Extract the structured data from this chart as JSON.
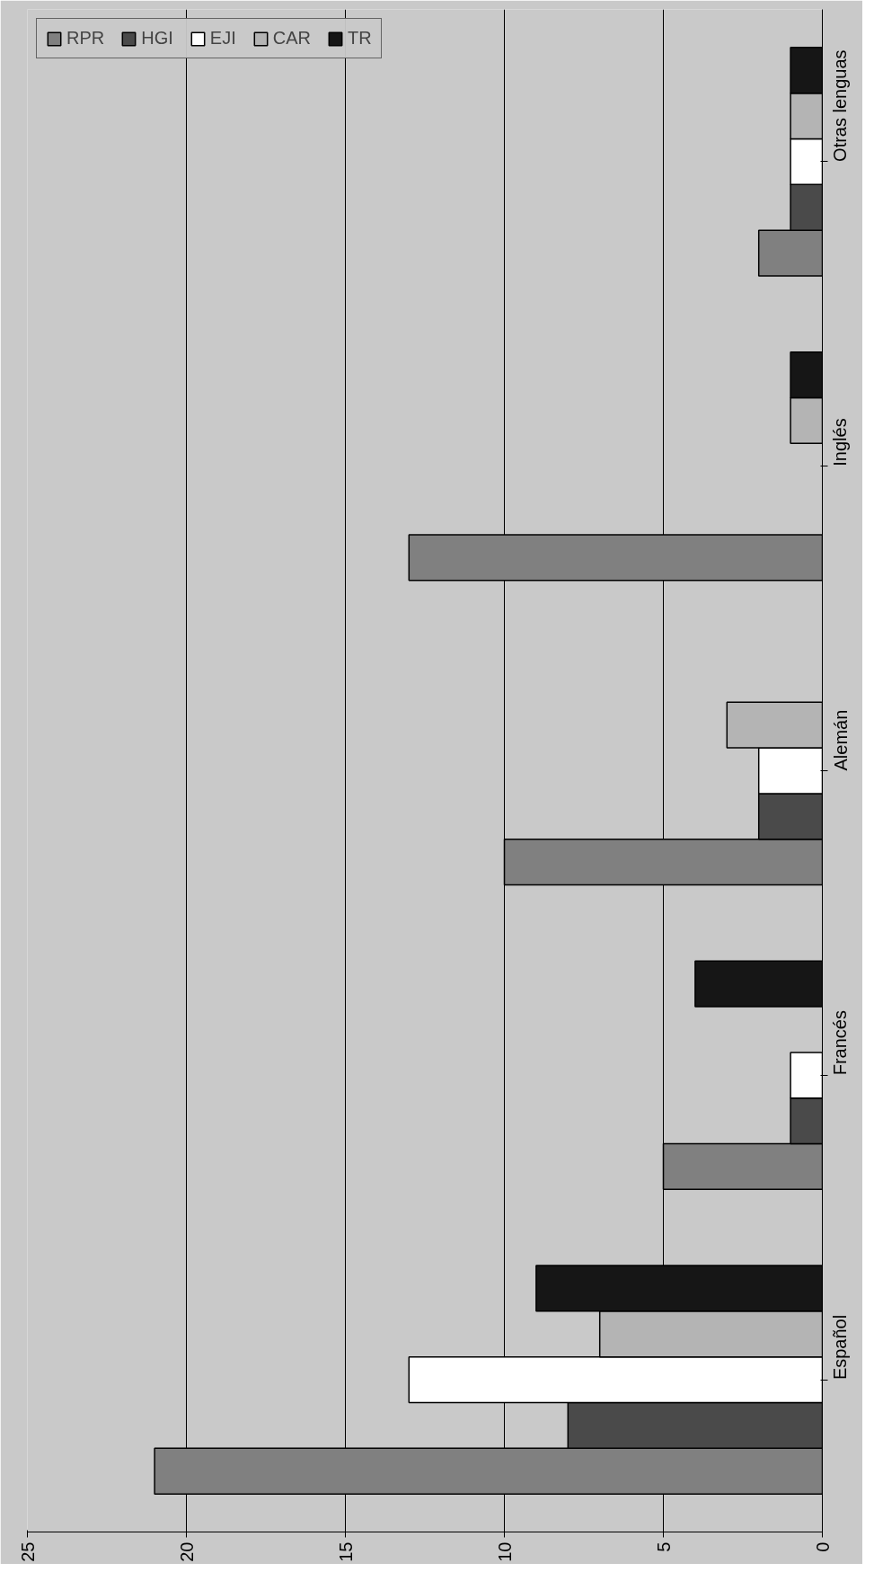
{
  "chart_data": {
    "type": "bar",
    "orientation": "horizontal",
    "categories": [
      "Otras lenguas",
      "Inglés",
      "Alemán",
      "Francés",
      "Español"
    ],
    "series": [
      {
        "name": "RPR",
        "color": "#808080",
        "values": [
          2,
          13,
          10,
          5,
          21
        ]
      },
      {
        "name": "HGI",
        "color": "#4a4a4a",
        "values": [
          1,
          null,
          2,
          1,
          8
        ]
      },
      {
        "name": "EJI",
        "color": "#ffffff",
        "values": [
          1,
          null,
          2,
          1,
          13
        ]
      },
      {
        "name": "CAR",
        "color": "#b4b4b4",
        "values": [
          1,
          1,
          3,
          null,
          7
        ]
      },
      {
        "name": "TR",
        "color": "#161616",
        "values": [
          1,
          1,
          null,
          4,
          9
        ]
      }
    ],
    "xlim": [
      25,
      0
    ],
    "xticks": [
      25,
      20,
      15,
      10,
      5,
      0
    ],
    "grid": "x",
    "legend": "top left"
  }
}
